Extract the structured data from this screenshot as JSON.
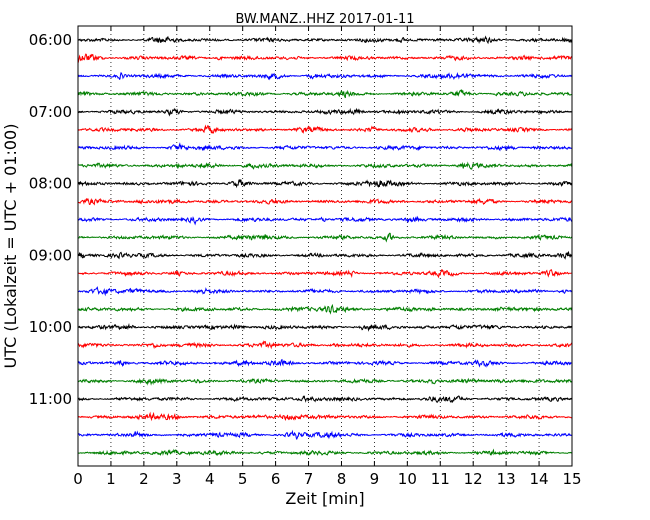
{
  "chart_data": {
    "type": "line",
    "title": "BW.MANZ..HHZ 2017-01-11",
    "xlabel": "Zeit  [min]",
    "ylabel": "UTC (Lokalzeit = UTC + 01:00)",
    "xlim": [
      0,
      15
    ],
    "x_ticks": [
      0,
      1,
      2,
      3,
      4,
      5,
      6,
      7,
      8,
      9,
      10,
      11,
      12,
      13,
      14,
      15
    ],
    "x_tick_labels": [
      "0",
      "1",
      "2",
      "3",
      "4",
      "5",
      "6",
      "7",
      "8",
      "9",
      "10",
      "11",
      "12",
      "13",
      "14",
      "15"
    ],
    "y_tick_labels": [
      "06:00",
      "07:00",
      "08:00",
      "09:00",
      "10:00",
      "11:00"
    ],
    "y_tick_trace_index": [
      0,
      4,
      8,
      12,
      16,
      20
    ],
    "trace_interval_min": 15,
    "trace_colors": [
      "#000000",
      "#ff0000",
      "#0000ff",
      "#007f00"
    ],
    "grid": "vertical dotted at each minute",
    "series": [
      {
        "start": "06:00"
      },
      {
        "start": "06:15"
      },
      {
        "start": "06:30"
      },
      {
        "start": "06:45"
      },
      {
        "start": "07:00"
      },
      {
        "start": "07:15"
      },
      {
        "start": "07:30"
      },
      {
        "start": "07:45"
      },
      {
        "start": "08:00"
      },
      {
        "start": "08:15"
      },
      {
        "start": "08:30"
      },
      {
        "start": "08:45"
      },
      {
        "start": "09:00"
      },
      {
        "start": "09:15"
      },
      {
        "start": "09:30"
      },
      {
        "start": "09:45"
      },
      {
        "start": "10:00"
      },
      {
        "start": "10:15"
      },
      {
        "start": "10:30"
      },
      {
        "start": "10:45"
      },
      {
        "start": "11:00"
      },
      {
        "start": "11:15"
      },
      {
        "start": "11:30"
      },
      {
        "start": "11:45"
      }
    ]
  }
}
